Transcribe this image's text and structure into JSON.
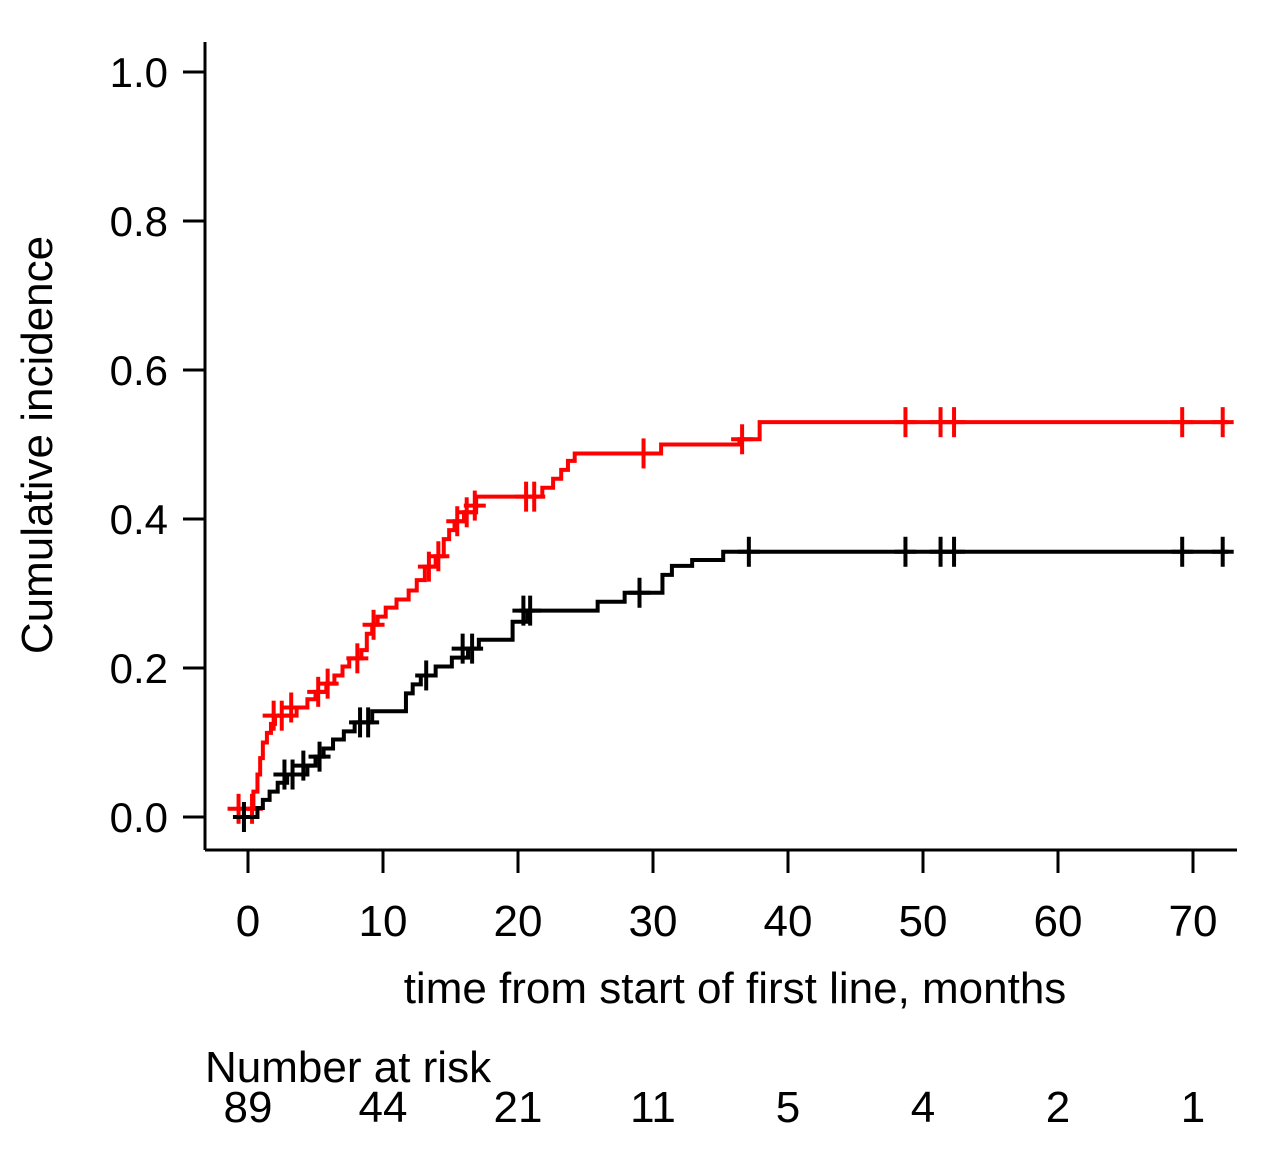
{
  "chart_data": {
    "type": "line",
    "subtype": "cumulative-incidence-step-curves",
    "title": "",
    "xlabel": "time from start of first line, months",
    "ylabel": "Cumulative incidence",
    "xlim": [
      -1.5,
      73.5
    ],
    "ylim": [
      0,
      1.0
    ],
    "grid": false,
    "legend": "none",
    "yticks": [
      {
        "value": 0.0,
        "label": "0.0"
      },
      {
        "value": 0.2,
        "label": "0.2"
      },
      {
        "value": 0.4,
        "label": "0.4"
      },
      {
        "value": 0.6,
        "label": "0.6"
      },
      {
        "value": 0.8,
        "label": "0.8"
      },
      {
        "value": 1.0,
        "label": "1.0"
      }
    ],
    "xticks": [
      {
        "value": 0,
        "label": "0"
      },
      {
        "value": 10,
        "label": "10"
      },
      {
        "value": 20,
        "label": "20"
      },
      {
        "value": 30,
        "label": "30"
      },
      {
        "value": 40,
        "label": "40"
      },
      {
        "value": 50,
        "label": "50"
      },
      {
        "value": 60,
        "label": "60"
      },
      {
        "value": 70,
        "label": "70"
      }
    ],
    "series": [
      {
        "name": "red-curve",
        "color": "#ff0000",
        "step": true,
        "points": [
          [
            0,
            0.011
          ],
          [
            0.4,
            0.034
          ],
          [
            0.7,
            0.057
          ],
          [
            0.9,
            0.079
          ],
          [
            1.1,
            0.1
          ],
          [
            1.4,
            0.113
          ],
          [
            1.7,
            0.125
          ],
          [
            2.0,
            0.136
          ],
          [
            3.6,
            0.147
          ],
          [
            4.4,
            0.158
          ],
          [
            5.0,
            0.168
          ],
          [
            5.8,
            0.179
          ],
          [
            6.4,
            0.19
          ],
          [
            7.0,
            0.202
          ],
          [
            7.5,
            0.213
          ],
          [
            8.4,
            0.224
          ],
          [
            8.8,
            0.246
          ],
          [
            9.2,
            0.258
          ],
          [
            9.6,
            0.269
          ],
          [
            10.2,
            0.281
          ],
          [
            11.0,
            0.292
          ],
          [
            11.9,
            0.304
          ],
          [
            12.5,
            0.318
          ],
          [
            13.1,
            0.336
          ],
          [
            13.9,
            0.35
          ],
          [
            14.5,
            0.373
          ],
          [
            14.9,
            0.385
          ],
          [
            15.3,
            0.397
          ],
          [
            16.0,
            0.409
          ],
          [
            16.9,
            0.43
          ],
          [
            21.8,
            0.442
          ],
          [
            22.6,
            0.454
          ],
          [
            23.2,
            0.466
          ],
          [
            23.7,
            0.478
          ],
          [
            24.2,
            0.488
          ],
          [
            30.6,
            0.5
          ],
          [
            36.4,
            0.507
          ],
          [
            37.9,
            0.53
          ],
          [
            72.6,
            0.53
          ]
        ],
        "censor_marks": [
          [
            -0.7,
            0.011
          ],
          [
            0.3,
            0.011
          ],
          [
            1.9,
            0.136
          ],
          [
            2.5,
            0.136
          ],
          [
            3.2,
            0.147
          ],
          [
            5.2,
            0.168
          ],
          [
            5.9,
            0.179
          ],
          [
            8.1,
            0.213
          ],
          [
            9.3,
            0.258
          ],
          [
            13.4,
            0.336
          ],
          [
            14.1,
            0.35
          ],
          [
            15.5,
            0.397
          ],
          [
            16.2,
            0.409
          ],
          [
            16.8,
            0.418
          ],
          [
            20.6,
            0.43
          ],
          [
            21.2,
            0.43
          ],
          [
            29.3,
            0.488
          ],
          [
            36.6,
            0.507
          ],
          [
            48.7,
            0.53
          ],
          [
            51.3,
            0.53
          ],
          [
            52.3,
            0.53
          ],
          [
            69.2,
            0.53
          ],
          [
            72.2,
            0.53
          ]
        ]
      },
      {
        "name": "black-curve",
        "color": "#000000",
        "step": true,
        "points": [
          [
            0,
            0.0
          ],
          [
            0.7,
            0.012
          ],
          [
            1.1,
            0.023
          ],
          [
            1.6,
            0.034
          ],
          [
            2.2,
            0.046
          ],
          [
            2.9,
            0.057
          ],
          [
            4.4,
            0.069
          ],
          [
            5.0,
            0.081
          ],
          [
            5.6,
            0.092
          ],
          [
            6.3,
            0.104
          ],
          [
            7.1,
            0.115
          ],
          [
            7.9,
            0.127
          ],
          [
            9.2,
            0.142
          ],
          [
            11.7,
            0.166
          ],
          [
            12.2,
            0.178
          ],
          [
            12.8,
            0.19
          ],
          [
            13.9,
            0.202
          ],
          [
            15.1,
            0.214
          ],
          [
            16.3,
            0.226
          ],
          [
            17.1,
            0.238
          ],
          [
            19.6,
            0.262
          ],
          [
            20.7,
            0.277
          ],
          [
            25.9,
            0.289
          ],
          [
            27.9,
            0.301
          ],
          [
            30.7,
            0.325
          ],
          [
            31.4,
            0.337
          ],
          [
            32.9,
            0.345
          ],
          [
            35.2,
            0.356
          ],
          [
            72.6,
            0.356
          ]
        ],
        "censor_marks": [
          [
            -0.3,
            0.0
          ],
          [
            2.7,
            0.057
          ],
          [
            3.3,
            0.057
          ],
          [
            4.1,
            0.069
          ],
          [
            5.3,
            0.081
          ],
          [
            8.3,
            0.127
          ],
          [
            8.9,
            0.127
          ],
          [
            13.2,
            0.19
          ],
          [
            15.9,
            0.226
          ],
          [
            16.6,
            0.226
          ],
          [
            20.4,
            0.277
          ],
          [
            20.9,
            0.277
          ],
          [
            29.0,
            0.301
          ],
          [
            37.1,
            0.356
          ],
          [
            48.7,
            0.356
          ],
          [
            51.3,
            0.356
          ],
          [
            52.3,
            0.356
          ],
          [
            69.2,
            0.356
          ],
          [
            72.2,
            0.356
          ]
        ]
      }
    ],
    "number_at_risk": {
      "label": "Number at risk",
      "entries": [
        {
          "time": 0,
          "count": "89"
        },
        {
          "time": 10,
          "count": "44"
        },
        {
          "time": 20,
          "count": "21"
        },
        {
          "time": 30,
          "count": "11"
        },
        {
          "time": 40,
          "count": "5"
        },
        {
          "time": 50,
          "count": "4"
        },
        {
          "time": 60,
          "count": "2"
        },
        {
          "time": 70,
          "count": "1"
        }
      ]
    },
    "colors": {
      "axis": "#000000",
      "text": "#000000",
      "background": "#ffffff",
      "series_red": "#ff0000",
      "series_black": "#000000"
    }
  }
}
